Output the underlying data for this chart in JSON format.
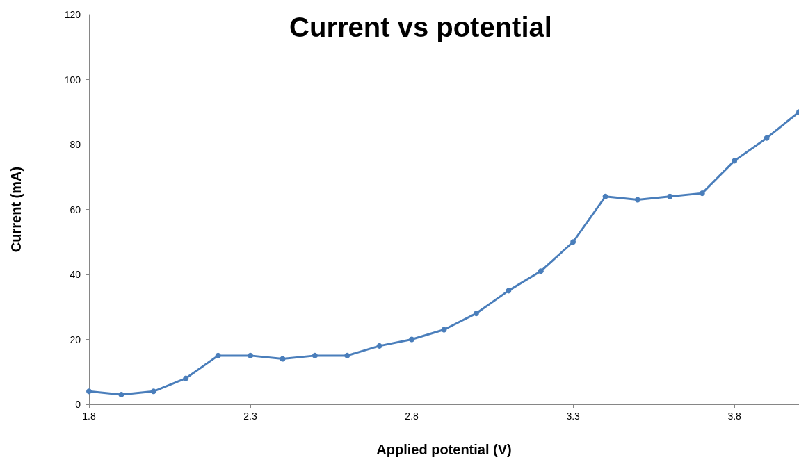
{
  "chart_data": {
    "type": "line",
    "title": "Current vs potential",
    "xlabel": "Applied potential (V)",
    "ylabel": "Current (mA)",
    "x": [
      1.8,
      1.9,
      2.0,
      2.1,
      2.2,
      2.3,
      2.4,
      2.5,
      2.6,
      2.7,
      2.8,
      2.9,
      3.0,
      3.1,
      3.2,
      3.3,
      3.4,
      3.5,
      3.6,
      3.7,
      3.8,
      3.9,
      4.0
    ],
    "series": [
      {
        "color": "#4a7ebb",
        "values": [
          4,
          3,
          4,
          8,
          15,
          15,
          14,
          15,
          15,
          18,
          20,
          23,
          28,
          35,
          41,
          50,
          64,
          63,
          64,
          65,
          75,
          82,
          90
        ]
      }
    ],
    "xlim": [
      1.8,
      4.0
    ],
    "xticks": [
      1.8,
      2.3,
      2.8,
      3.3,
      3.8
    ],
    "ylim": [
      0,
      120
    ],
    "yticks": [
      0,
      20,
      40,
      60,
      80,
      100,
      120
    ],
    "grid": false,
    "marker": "circle",
    "line_style": "solid"
  }
}
